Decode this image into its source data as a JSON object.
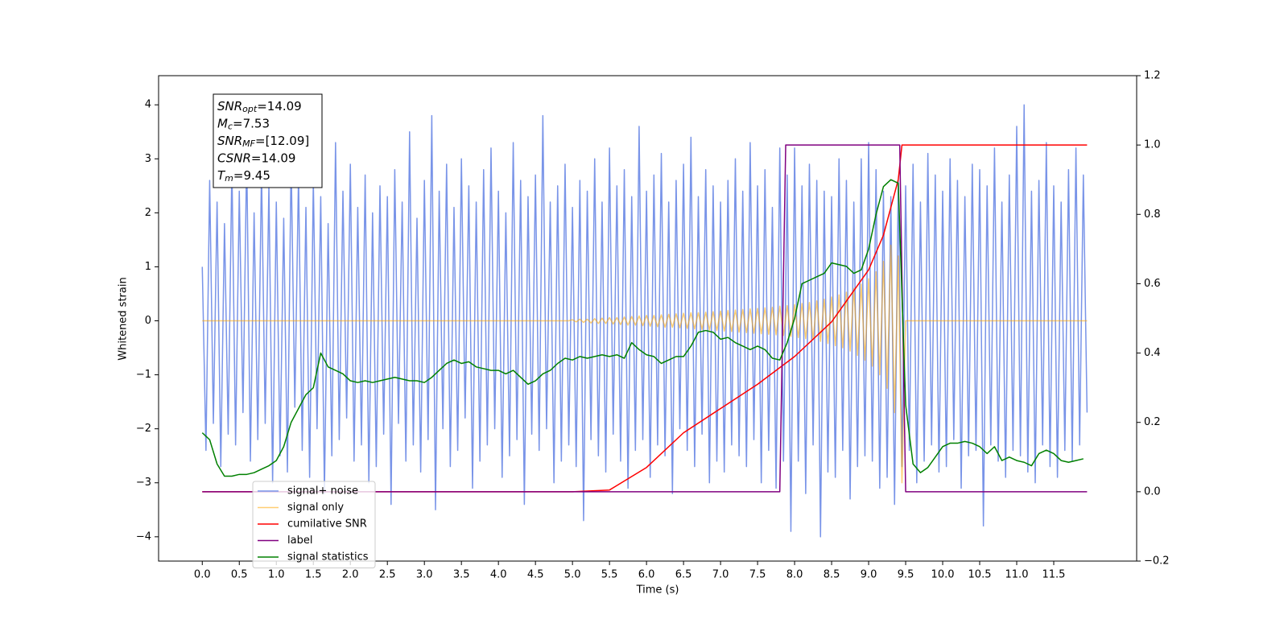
{
  "chart_data": {
    "type": "line",
    "xlabel": "Time (s)",
    "ylabel": "Whitened strain",
    "xlim": [
      -0.59,
      12.62
    ],
    "ylim": [
      -4.45,
      4.54
    ],
    "y2lim": [
      -0.2,
      1.2
    ],
    "xticks": [
      {
        "value": 0,
        "label": "0.0"
      },
      0.5,
      {
        "value": 1,
        "label": "1.0"
      },
      1.5,
      {
        "value": 2,
        "label": "2.0"
      },
      2.5,
      {
        "value": 3,
        "label": "3.0"
      },
      3.5,
      {
        "value": 4,
        "label": "4.0"
      },
      4.5,
      {
        "value": 5,
        "label": "5.0"
      },
      5.5,
      {
        "value": 6,
        "label": "6.0"
      },
      6.5,
      {
        "value": 7,
        "label": "7.0"
      },
      7.5,
      {
        "value": 8,
        "label": "8.0"
      },
      8.5,
      {
        "value": 9,
        "label": "9.0"
      },
      9.5,
      {
        "value": 10,
        "label": "10.0"
      },
      10.5,
      {
        "value": 11,
        "label": "11.0"
      },
      11.5
    ],
    "yticks": [
      {
        "value": -4,
        "label": "−4"
      },
      {
        "value": -3,
        "label": "−3"
      },
      {
        "value": -2,
        "label": "−2"
      },
      {
        "value": -1,
        "label": "−1"
      },
      0,
      1,
      2,
      3,
      4
    ],
    "y2ticks": [
      {
        "value": -0.2,
        "label": "−0.2"
      },
      {
        "value": 0,
        "label": "0.0"
      },
      0.2,
      0.4,
      0.6,
      0.8,
      {
        "value": 1,
        "label": "1.0"
      },
      {
        "value": 1.2,
        "label": "1.2"
      }
    ],
    "legend_loc": "lower left",
    "annotation": [
      {
        "symbol": "SNR",
        "sub": "opt",
        "text": "=14.09"
      },
      {
        "symbol": "M",
        "sub": "c",
        "text": "=7.53"
      },
      {
        "symbol": "SNR",
        "sub": "MF",
        "text": "=[12.09]"
      },
      {
        "symbol": "CSNR",
        "sub": "",
        "text": "=14.09"
      },
      {
        "symbol": "T",
        "sub": "m",
        "text": "=9.45"
      }
    ],
    "x": [
      0,
      0.05,
      0.1,
      0.15,
      0.2,
      0.25,
      0.3,
      0.35,
      0.4,
      0.45,
      0.5,
      0.55,
      0.6,
      0.65,
      0.7,
      0.75,
      0.8,
      0.85,
      0.9,
      0.95,
      1,
      1.05,
      1.1,
      1.15,
      1.2,
      1.25,
      1.3,
      1.35,
      1.4,
      1.45,
      1.5,
      1.55,
      1.6,
      1.65,
      1.7,
      1.75,
      1.8,
      1.85,
      1.9,
      1.95,
      2,
      2.05,
      2.1,
      2.15,
      2.2,
      2.25,
      2.3,
      2.35,
      2.4,
      2.45,
      2.5,
      2.55,
      2.6,
      2.65,
      2.7,
      2.75,
      2.8,
      2.85,
      2.9,
      2.95,
      3,
      3.05,
      3.1,
      3.15,
      3.2,
      3.25,
      3.3,
      3.35,
      3.4,
      3.45,
      3.5,
      3.55,
      3.6,
      3.65,
      3.7,
      3.75,
      3.8,
      3.85,
      3.9,
      3.95,
      4,
      4.05,
      4.1,
      4.15,
      4.2,
      4.25,
      4.3,
      4.35,
      4.4,
      4.45,
      4.5,
      4.55,
      4.6,
      4.65,
      4.7,
      4.75,
      4.8,
      4.85,
      4.9,
      4.95,
      5,
      5.05,
      5.1,
      5.15,
      5.2,
      5.25,
      5.3,
      5.35,
      5.4,
      5.45,
      5.5,
      5.55,
      5.6,
      5.65,
      5.7,
      5.75,
      5.8,
      5.85,
      5.9,
      5.95,
      6,
      6.05,
      6.1,
      6.15,
      6.2,
      6.25,
      6.3,
      6.35,
      6.4,
      6.45,
      6.5,
      6.55,
      6.6,
      6.65,
      6.7,
      6.75,
      6.8,
      6.85,
      6.9,
      6.95,
      7,
      7.05,
      7.1,
      7.15,
      7.2,
      7.25,
      7.3,
      7.35,
      7.4,
      7.45,
      7.5,
      7.55,
      7.6,
      7.65,
      7.7,
      7.75,
      7.8,
      7.85,
      7.9,
      7.95,
      8,
      8.05,
      8.1,
      8.15,
      8.2,
      8.25,
      8.3,
      8.35,
      8.4,
      8.45,
      8.5,
      8.55,
      8.6,
      8.65,
      8.7,
      8.75,
      8.8,
      8.85,
      8.9,
      8.95,
      9,
      9.05,
      9.1,
      9.15,
      9.2,
      9.25,
      9.3,
      9.35,
      9.4,
      9.45,
      9.5,
      9.55,
      9.6,
      9.65,
      9.7,
      9.75,
      9.8,
      9.85,
      9.9,
      9.95,
      10,
      10.05,
      10.1,
      10.15,
      10.2,
      10.25,
      10.3,
      10.35,
      10.4,
      10.45,
      10.5,
      10.55,
      10.6,
      10.65,
      10.7,
      10.75,
      10.8,
      10.85,
      10.9,
      10.95,
      11,
      11.05,
      11.1,
      11.15,
      11.2,
      11.25,
      11.3,
      11.35,
      11.4,
      11.45,
      11.5,
      11.55,
      11.6,
      11.65,
      11.7,
      11.75,
      11.8,
      11.85,
      11.9,
      11.95
    ],
    "series": [
      {
        "name": "signal+ noise",
        "color": "#7994e8",
        "values": [
          1.0,
          -2.4,
          2.6,
          -1.9,
          2.2,
          -2.7,
          1.8,
          -2.1,
          2.9,
          -2.3,
          2.4,
          -1.7,
          3.1,
          -2.6,
          2.0,
          -2.2,
          2.8,
          -1.9,
          2.5,
          -3.0,
          2.2,
          -2.5,
          1.9,
          -2.8,
          3.0,
          -1.6,
          2.7,
          -2.4,
          2.1,
          -2.9,
          2.6,
          -2.0,
          2.3,
          -3.2,
          1.8,
          -2.5,
          3.3,
          -2.2,
          2.4,
          -1.8,
          2.9,
          -2.6,
          2.1,
          -2.3,
          2.7,
          -3.0,
          2.0,
          -2.7,
          2.5,
          -2.1,
          2.3,
          -3.4,
          2.8,
          -1.9,
          2.2,
          -2.6,
          3.5,
          -2.3,
          1.9,
          -2.8,
          2.6,
          -2.2,
          3.8,
          -3.5,
          2.4,
          -2.0,
          2.9,
          -2.7,
          2.1,
          -2.4,
          3.0,
          -1.8,
          2.5,
          -3.1,
          2.2,
          -2.6,
          2.8,
          -2.3,
          3.2,
          -2.0,
          2.4,
          -2.9,
          2.0,
          -2.5,
          3.3,
          -2.2,
          2.6,
          -3.4,
          2.3,
          -2.1,
          2.7,
          -2.4,
          3.8,
          -2.0,
          2.2,
          -3.0,
          2.5,
          -2.6,
          2.9,
          -2.3,
          2.1,
          -2.7,
          2.6,
          -3.7,
          2.4,
          -2.2,
          3.0,
          -2.5,
          2.2,
          -2.8,
          3.2,
          -2.1,
          2.5,
          -2.6,
          2.8,
          -3.1,
          2.3,
          -2.4,
          3.6,
          -2.2,
          2.4,
          -2.9,
          2.7,
          -2.3,
          3.1,
          -2.5,
          2.2,
          -3.2,
          2.6,
          -2.0,
          2.9,
          -2.4,
          3.4,
          -2.7,
          2.3,
          -2.1,
          2.8,
          -3.0,
          2.5,
          -2.6,
          2.2,
          -2.8,
          2.6,
          -2.3,
          3.0,
          -2.5,
          2.4,
          -2.7,
          3.3,
          -2.2,
          2.5,
          -3.0,
          2.8,
          -2.4,
          2.1,
          -3.1,
          3.2,
          -2.6,
          2.7,
          -3.9,
          3.2,
          -2.6,
          2.5,
          -3.2,
          2.9,
          -2.3,
          2.6,
          -4.0,
          2.4,
          -2.8,
          2.3,
          -2.9,
          3.0,
          -2.4,
          2.6,
          -3.3,
          2.2,
          -2.7,
          3.0,
          -2.5,
          3.3,
          -2.6,
          2.8,
          -3.1,
          2.4,
          -2.9,
          2.3,
          -3.4,
          2.6,
          -2.7,
          2.5,
          -2.4,
          2.9,
          -3.0,
          2.2,
          -2.6,
          3.1,
          -2.3,
          2.7,
          -2.8,
          2.4,
          -2.7,
          3.0,
          -2.2,
          2.6,
          -3.1,
          2.3,
          -2.5,
          2.9,
          -2.4,
          2.8,
          -3.8,
          2.5,
          -2.3,
          3.2,
          -2.6,
          2.2,
          -2.9,
          2.7,
          -2.4,
          3.6,
          -2.5,
          4.0,
          -2.8,
          2.4,
          -3.0,
          2.6,
          -2.3,
          3.3,
          -2.7,
          2.5,
          -2.9,
          2.2,
          -2.4,
          2.8,
          -2.6,
          3.2,
          -2.3,
          2.7,
          -1.7
        ]
      },
      {
        "name": "signal only",
        "color": "#ffa500",
        "values": [
          0,
          0,
          0,
          0,
          0,
          0,
          0,
          0,
          0,
          0,
          0,
          0,
          0,
          0,
          0,
          0,
          0,
          0,
          0,
          0,
          0,
          0,
          0,
          0,
          0,
          0,
          0,
          0,
          0,
          0,
          0,
          0,
          0,
          0,
          0,
          0,
          0,
          0,
          0,
          0,
          0,
          0,
          0,
          0,
          0,
          0,
          0,
          0,
          0,
          0,
          0,
          0,
          0,
          0,
          0,
          0,
          0,
          0,
          0,
          0,
          0,
          0,
          0,
          0,
          0,
          0,
          0,
          0,
          0,
          0,
          0,
          0,
          0,
          0,
          0,
          0,
          0,
          0,
          0,
          0,
          0,
          0,
          0,
          0,
          0,
          0,
          0,
          0,
          0,
          0,
          0,
          0,
          0,
          0,
          0,
          0,
          0,
          0,
          0,
          0,
          0.02,
          -0.02,
          0.03,
          -0.03,
          0.03,
          -0.04,
          0.04,
          -0.05,
          0.05,
          -0.05,
          0.06,
          -0.06,
          0.06,
          -0.07,
          0.07,
          -0.08,
          0.08,
          -0.08,
          0.09,
          -0.09,
          0.1,
          -0.1,
          0.1,
          -0.11,
          0.11,
          -0.12,
          0.12,
          -0.12,
          0.13,
          -0.13,
          0.14,
          -0.14,
          0.15,
          -0.15,
          0.15,
          -0.16,
          0.16,
          -0.17,
          0.17,
          -0.18,
          0.18,
          -0.19,
          0.19,
          -0.2,
          0.2,
          -0.21,
          0.21,
          -0.22,
          0.22,
          -0.23,
          0.23,
          -0.24,
          0.24,
          -0.25,
          0.25,
          -0.26,
          0.27,
          -0.27,
          0.28,
          -0.29,
          0.3,
          -0.31,
          0.32,
          -0.33,
          0.34,
          -0.35,
          0.37,
          -0.38,
          0.4,
          -0.42,
          0.44,
          -0.46,
          0.48,
          -0.5,
          0.53,
          -0.56,
          0.6,
          -0.64,
          0.68,
          -0.73,
          0.78,
          -0.84,
          0.91,
          -1.0,
          1.1,
          -1.25,
          1.4,
          -1.7,
          1.2,
          -3.0,
          0,
          0,
          0,
          0,
          0,
          0,
          0,
          0,
          0,
          0,
          0,
          0,
          0,
          0,
          0,
          0,
          0,
          0,
          0,
          0,
          0,
          0,
          0,
          0,
          0,
          0,
          0,
          0,
          0,
          0,
          0,
          0,
          0,
          0,
          0,
          0,
          0,
          0,
          0,
          0,
          0,
          0,
          0,
          0,
          0,
          0,
          0,
          0,
          0,
          0
        ]
      },
      {
        "name": "cumilative SNR",
        "color": "#ff0000",
        "axis": "y2",
        "x": [
          0,
          5,
          5.5,
          6,
          6.5,
          7,
          7.5,
          8,
          8.5,
          9,
          9.2,
          9.4,
          9.45,
          11.95
        ],
        "values": [
          0,
          0,
          0.005,
          0.07,
          0.17,
          0.24,
          0.31,
          0.39,
          0.49,
          0.64,
          0.74,
          0.9,
          1,
          1
        ]
      },
      {
        "name": "label",
        "color": "#800080",
        "axis": "y2",
        "x": [
          0,
          7.8,
          7.88,
          9.42,
          9.5,
          11.95
        ],
        "values": [
          0,
          0,
          1,
          1,
          0,
          0
        ]
      },
      {
        "name": "signal statistics",
        "color": "#008000",
        "axis": "y2",
        "x": [
          0,
          0.1,
          0.2,
          0.3,
          0.4,
          0.5,
          0.6,
          0.7,
          0.8,
          0.9,
          1,
          1.1,
          1.2,
          1.3,
          1.4,
          1.5,
          1.6,
          1.7,
          1.8,
          1.9,
          2,
          2.1,
          2.2,
          2.3,
          2.4,
          2.5,
          2.6,
          2.7,
          2.8,
          2.9,
          3,
          3.1,
          3.2,
          3.3,
          3.4,
          3.5,
          3.6,
          3.7,
          3.8,
          3.9,
          4,
          4.1,
          4.2,
          4.3,
          4.4,
          4.5,
          4.6,
          4.7,
          4.8,
          4.9,
          5,
          5.1,
          5.2,
          5.3,
          5.4,
          5.5,
          5.6,
          5.7,
          5.8,
          5.9,
          6,
          6.1,
          6.2,
          6.3,
          6.4,
          6.5,
          6.6,
          6.7,
          6.8,
          6.9,
          7,
          7.1,
          7.2,
          7.3,
          7.4,
          7.5,
          7.6,
          7.7,
          7.8,
          7.9,
          8,
          8.1,
          8.2,
          8.3,
          8.4,
          8.5,
          8.6,
          8.7,
          8.8,
          8.9,
          9,
          9.1,
          9.2,
          9.3,
          9.4,
          9.5,
          9.6,
          9.7,
          9.8,
          9.9,
          10,
          10.1,
          10.2,
          10.3,
          10.4,
          10.5,
          10.6,
          10.7,
          10.8,
          10.9,
          11,
          11.1,
          11.2,
          11.3,
          11.4,
          11.5,
          11.6,
          11.7,
          11.8,
          11.9
        ],
        "values": [
          0.17,
          0.15,
          0.08,
          0.045,
          0.045,
          0.05,
          0.05,
          0.055,
          0.065,
          0.075,
          0.09,
          0.13,
          0.2,
          0.24,
          0.28,
          0.3,
          0.4,
          0.36,
          0.35,
          0.34,
          0.32,
          0.315,
          0.32,
          0.315,
          0.32,
          0.325,
          0.33,
          0.325,
          0.32,
          0.32,
          0.315,
          0.33,
          0.35,
          0.37,
          0.38,
          0.37,
          0.375,
          0.36,
          0.355,
          0.35,
          0.35,
          0.34,
          0.35,
          0.33,
          0.31,
          0.32,
          0.34,
          0.35,
          0.37,
          0.385,
          0.38,
          0.39,
          0.385,
          0.39,
          0.395,
          0.39,
          0.395,
          0.385,
          0.43,
          0.41,
          0.395,
          0.39,
          0.37,
          0.38,
          0.39,
          0.39,
          0.42,
          0.46,
          0.465,
          0.46,
          0.44,
          0.445,
          0.43,
          0.42,
          0.41,
          0.42,
          0.41,
          0.385,
          0.38,
          0.43,
          0.5,
          0.6,
          0.61,
          0.62,
          0.63,
          0.66,
          0.655,
          0.65,
          0.63,
          0.64,
          0.7,
          0.8,
          0.88,
          0.9,
          0.89,
          0.25,
          0.08,
          0.055,
          0.07,
          0.1,
          0.13,
          0.14,
          0.14,
          0.145,
          0.14,
          0.13,
          0.11,
          0.13,
          0.09,
          0.1,
          0.09,
          0.085,
          0.075,
          0.11,
          0.12,
          0.11,
          0.09,
          0.085,
          0.09,
          0.095
        ]
      }
    ]
  }
}
